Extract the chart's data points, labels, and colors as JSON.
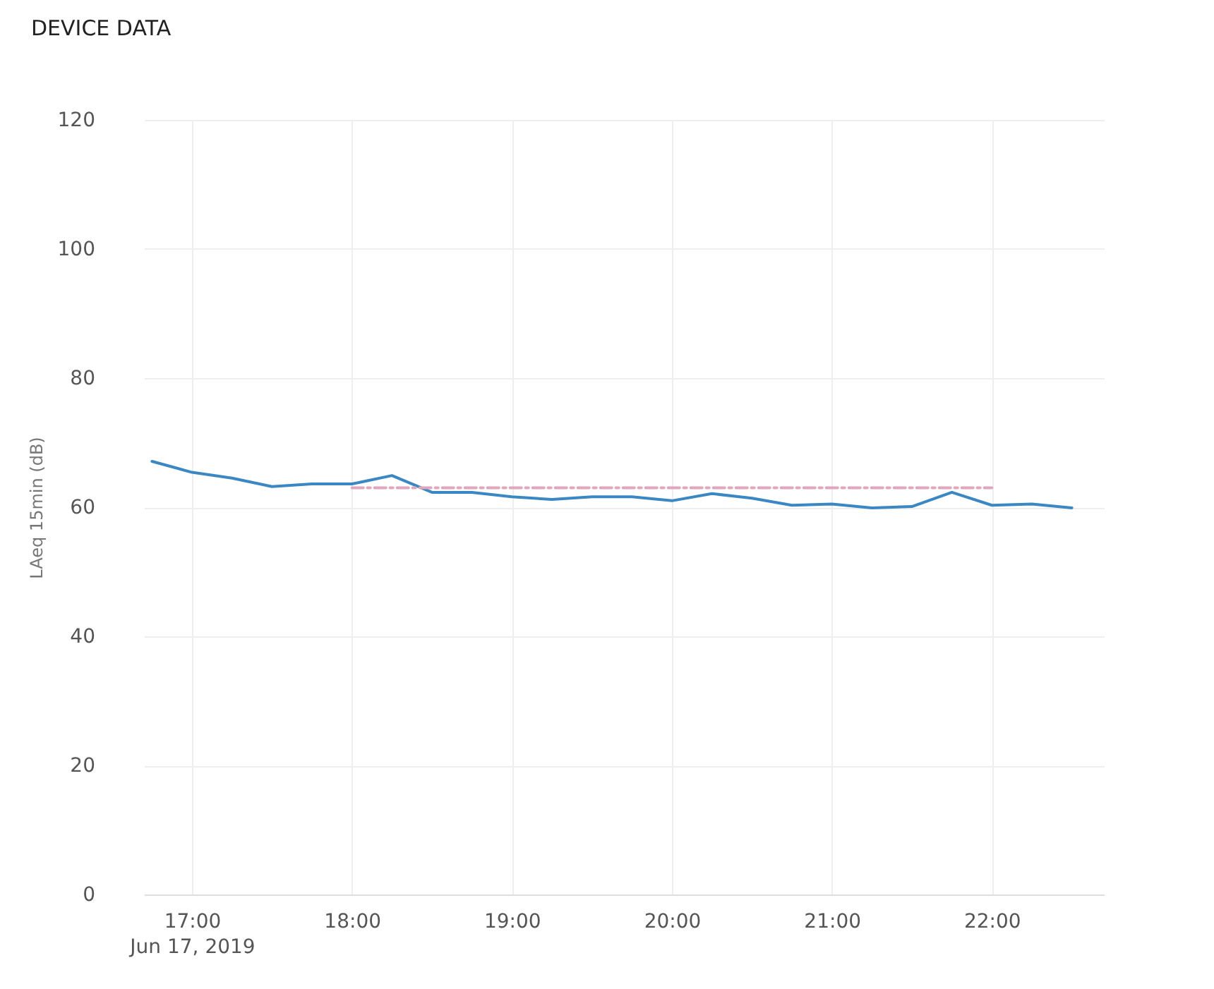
{
  "chart_data": {
    "type": "line",
    "title": "DEVICE DATA",
    "ylabel": "LAeq 15min (dB)",
    "x": [
      "2019-06-17T16:45",
      "2019-06-17T17:00",
      "2019-06-17T17:15",
      "2019-06-17T17:30",
      "2019-06-17T17:45",
      "2019-06-17T18:00",
      "2019-06-17T18:15",
      "2019-06-17T18:30",
      "2019-06-17T18:45",
      "2019-06-17T19:00",
      "2019-06-17T19:15",
      "2019-06-17T19:30",
      "2019-06-17T19:45",
      "2019-06-17T20:00",
      "2019-06-17T20:15",
      "2019-06-17T20:30",
      "2019-06-17T20:45",
      "2019-06-17T21:00",
      "2019-06-17T21:15",
      "2019-06-17T21:30",
      "2019-06-17T21:45",
      "2019-06-17T22:00",
      "2019-06-17T22:15",
      "2019-06-17T22:30"
    ],
    "series": [
      {
        "color": "#3a87c4",
        "line_style": "solid",
        "values": [
          67.1,
          65.4,
          64.5,
          63.2,
          63.6,
          63.6,
          64.9,
          62.3,
          62.3,
          61.6,
          61.2,
          61.6,
          61.6,
          61.0,
          62.1,
          61.4,
          60.3,
          60.5,
          59.9,
          60.1,
          62.3,
          60.3,
          60.5,
          59.9
        ]
      },
      {
        "color": "#e0a6bc",
        "line_style": "dashed",
        "x": [
          "2019-06-17T18:00",
          "2019-06-17T22:00"
        ],
        "values": [
          63,
          63
        ]
      }
    ],
    "xlim": [
      "2019-06-17T16:42",
      "2019-06-17T22:42"
    ],
    "xticks": [
      {
        "value": "2019-06-17T17:00",
        "label": "17:00\nJun 17, 2019"
      },
      {
        "value": "2019-06-17T18:00",
        "label": "18:00"
      },
      {
        "value": "2019-06-17T19:00",
        "label": "19:00"
      },
      {
        "value": "2019-06-17T20:00",
        "label": "20:00"
      },
      {
        "value": "2019-06-17T21:00",
        "label": "21:00"
      },
      {
        "value": "2019-06-17T22:00",
        "label": "22:00"
      }
    ],
    "ylim": [
      0,
      120
    ],
    "yticks": [
      0,
      20,
      40,
      60,
      80,
      100,
      120
    ],
    "grid": true,
    "marker": "none"
  }
}
